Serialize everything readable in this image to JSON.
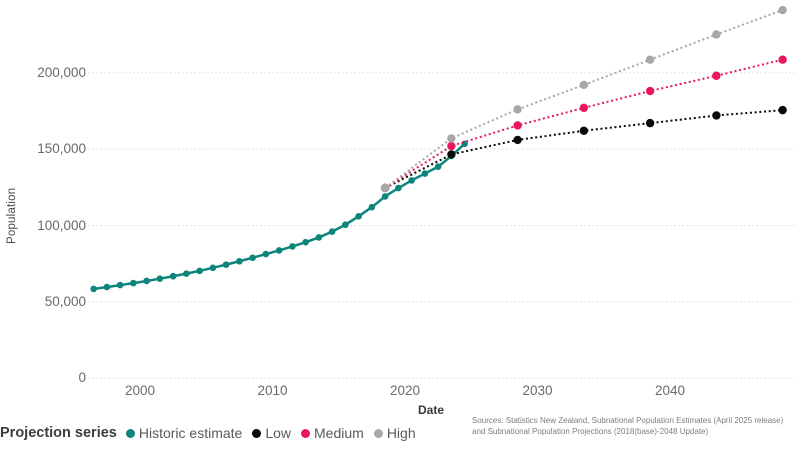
{
  "chart_data": {
    "type": "line",
    "title": "",
    "xlabel": "Date",
    "ylabel": "Population",
    "x_axis": {
      "ticks": [
        2000,
        2010,
        2020,
        2030,
        2040
      ]
    },
    "y_axis": {
      "ticks": [
        {
          "value": 0,
          "label": "0"
        },
        {
          "value": 50000,
          "label": "50,000"
        },
        {
          "value": 100000,
          "label": "100,000"
        },
        {
          "value": 150000,
          "label": "150,000"
        },
        {
          "value": 200000,
          "label": "200,000"
        }
      ],
      "range": [
        0,
        245000
      ]
    },
    "grid": "horizontal-dotted",
    "series": [
      {
        "name": "Historic estimate",
        "color": "#0e857b",
        "line_style": "solid",
        "years": [
          1996,
          1997,
          1998,
          1999,
          2000,
          2001,
          2002,
          2003,
          2004,
          2005,
          2006,
          2007,
          2008,
          2009,
          2010,
          2011,
          2012,
          2013,
          2014,
          2015,
          2016,
          2017,
          2018,
          2019,
          2020,
          2021,
          2022,
          2023,
          2024
        ],
        "values": [
          58500,
          59700,
          61000,
          62300,
          63700,
          65200,
          66800,
          68500,
          70300,
          72300,
          74400,
          76600,
          78900,
          81300,
          83700,
          86300,
          89100,
          92200,
          96000,
          100500,
          106000,
          112000,
          119000,
          124500,
          129500,
          134000,
          138500,
          145500,
          153500
        ]
      },
      {
        "name": "Low",
        "color": "#0a0a0a",
        "line_style": "dotted",
        "years": [
          2018,
          2023,
          2028,
          2033,
          2038,
          2043,
          2048
        ],
        "values": [
          124600,
          146500,
          156000,
          162000,
          167000,
          172000,
          175500
        ]
      },
      {
        "name": "Medium",
        "color": "#e8175d",
        "line_style": "dotted",
        "years": [
          2018,
          2023,
          2028,
          2033,
          2038,
          2043,
          2048
        ],
        "values": [
          124600,
          152000,
          165500,
          177000,
          188000,
          198000,
          208500
        ]
      },
      {
        "name": "High",
        "color": "#a7a7a7",
        "line_style": "dotted",
        "years": [
          2018,
          2023,
          2028,
          2033,
          2038,
          2043,
          2048
        ],
        "values": [
          124600,
          157000,
          176000,
          192000,
          208500,
          225000,
          241000
        ]
      }
    ]
  },
  "legend": {
    "title": "Projection series",
    "items": [
      {
        "label": "Historic estimate",
        "color": "#0e857b"
      },
      {
        "label": "Low",
        "color": "#0a0a0a"
      },
      {
        "label": "Medium",
        "color": "#e8175d"
      },
      {
        "label": "High",
        "color": "#a7a7a7"
      }
    ]
  },
  "source_note": {
    "line1": "Sources: Statistics New Zealand, Subnational Population Estimates (April 2025 release)",
    "line2": "and Subnational Population Projections (2018(base)-2048 Update)"
  }
}
